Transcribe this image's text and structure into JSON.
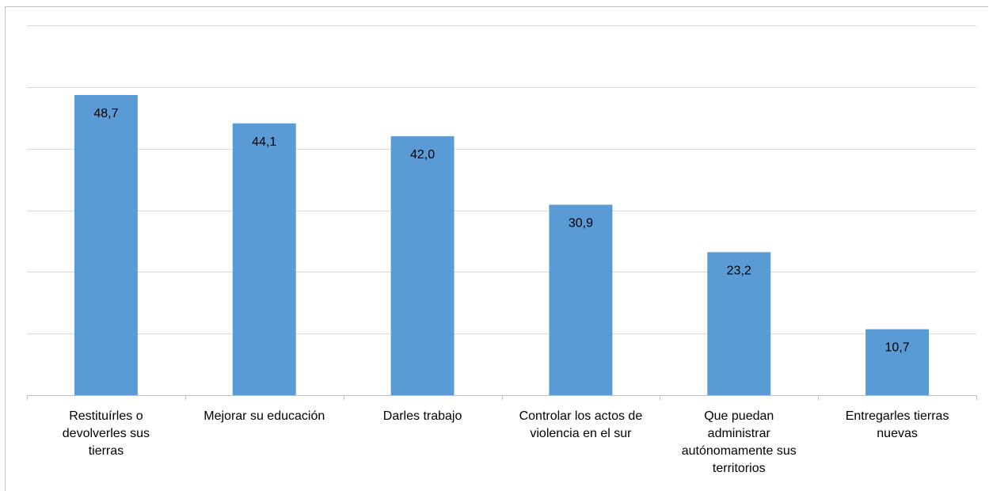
{
  "chart_data": {
    "type": "bar",
    "title": "",
    "xlabel": "",
    "ylabel": "",
    "ylim": [
      0,
      60
    ],
    "grid": true,
    "bar_color": "#5b9bd5",
    "categories": [
      [
        "Restituírles o",
        "devolverles sus",
        "tierras"
      ],
      [
        "Mejorar su educación"
      ],
      [
        "Darles trabajo"
      ],
      [
        "Controlar los actos de",
        "violencia en el sur"
      ],
      [
        "Que puedan",
        "administrar",
        "autónomamente sus",
        "territorios"
      ],
      [
        "Entregarles tierras",
        "nuevas"
      ]
    ],
    "values": [
      48.7,
      44.1,
      42.0,
      30.9,
      23.2,
      10.7
    ],
    "value_labels": [
      "48,7",
      "44,1",
      "42,0",
      "30,9",
      "23,2",
      "10,7"
    ]
  }
}
